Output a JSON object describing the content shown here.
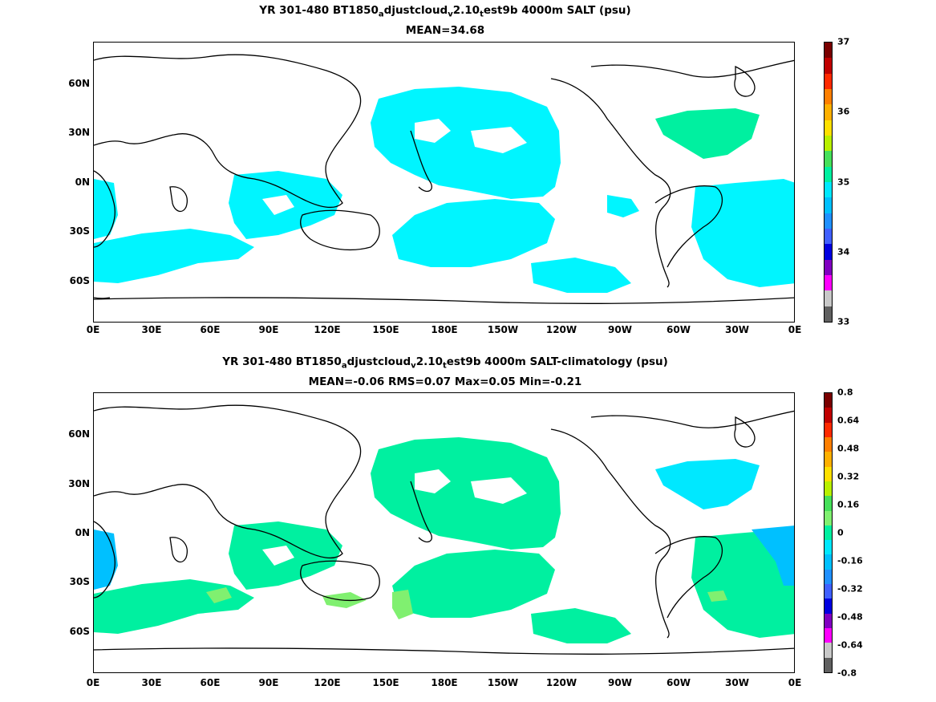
{
  "top": {
    "title_a": "YR 301-480 BT1850",
    "title_sub1": "a",
    "title_b": "djustcloud",
    "title_sub2": "v",
    "title_c": "2.10",
    "title_sub3": "t",
    "title_d": "est9b 4000m SALT (psu)",
    "stats": "MEAN=34.68",
    "cbar_labels": [
      "37",
      "36",
      "35",
      "34",
      "33"
    ]
  },
  "bottom": {
    "title_a": "YR 301-480 BT1850",
    "title_sub1": "a",
    "title_b": "djustcloud",
    "title_sub2": "v",
    "title_c": "2.10",
    "title_sub3": "t",
    "title_d": "est9b 4000m SALT-climatology (psu)",
    "stats": "MEAN=-0.06   RMS=0.07   Max=0.05   Min=-0.21",
    "cbar_labels": [
      "0.8",
      "0.64",
      "0.48",
      "0.32",
      "0.16",
      "0",
      "-0.16",
      "-0.32",
      "-0.48",
      "-0.64",
      "-0.8"
    ]
  },
  "axes": {
    "lat_labels": [
      "60N",
      "30N",
      "0N",
      "30S",
      "60S"
    ],
    "lon_labels": [
      "0E",
      "30E",
      "60E",
      "90E",
      "120E",
      "150E",
      "180E",
      "150W",
      "120W",
      "90W",
      "60W",
      "30W",
      "0E"
    ]
  },
  "colors": {
    "cmap": [
      "#7a0000",
      "#c00000",
      "#ff2a00",
      "#ff7f00",
      "#ffb000",
      "#ffe000",
      "#b8f000",
      "#46e05a",
      "#00f0a0",
      "#00e8ff",
      "#00c0ff",
      "#2090ff",
      "#4060ff",
      "#0000e0",
      "#8000c0",
      "#ff00ff",
      "#c8c8c8",
      "#606060"
    ],
    "salt_field": "#00f5ff",
    "salt_high": "#00f0a0",
    "anom_field": "#00f0a0",
    "anom_low": "#00e8ff",
    "anom_lower": "#00c0ff",
    "anom_pos": "#80f070",
    "coast": "#000000"
  }
}
